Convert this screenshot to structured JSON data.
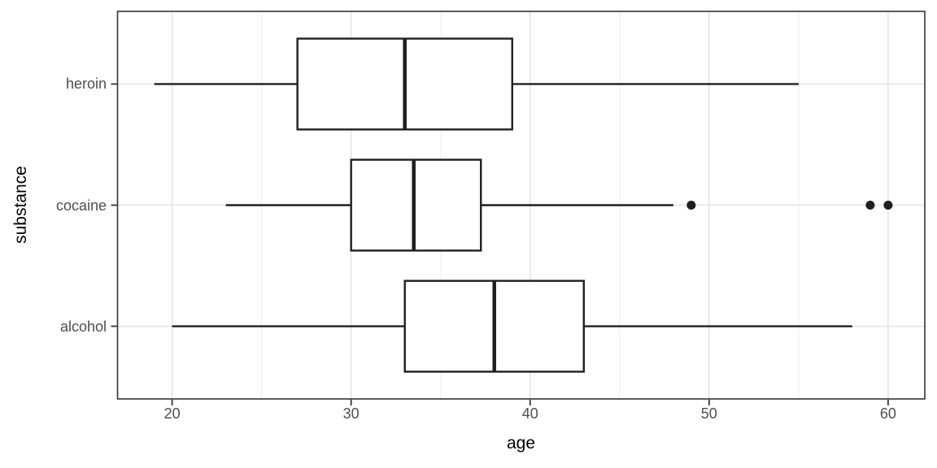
{
  "chart_data": {
    "type": "boxplot",
    "orientation": "horizontal",
    "title": "",
    "xlabel": "age",
    "ylabel": "substance",
    "xlim": [
      16.95,
      62.05
    ],
    "x_ticks": [
      20,
      30,
      40,
      50,
      60
    ],
    "x_minor_ticks": [
      25,
      35,
      45,
      55
    ],
    "grid": true,
    "legend": false,
    "categories": [
      "heroin",
      "cocaine",
      "alcohol"
    ],
    "series": [
      {
        "name": "heroin",
        "whisker_low": 19,
        "q1": 27,
        "median": 33,
        "q3": 39,
        "whisker_high": 55,
        "outliers": []
      },
      {
        "name": "cocaine",
        "whisker_low": 23,
        "q1": 30,
        "median": 33.5,
        "q3": 37.25,
        "whisker_high": 48,
        "outliers": [
          49,
          59,
          60
        ]
      },
      {
        "name": "alcohol",
        "whisker_low": 20,
        "q1": 33,
        "median": 38,
        "q3": 43,
        "whisker_high": 58,
        "outliers": []
      }
    ],
    "colors": {
      "box_stroke": "#1f1f1f",
      "box_fill": "#ffffff",
      "outlier": "#1f1f1f",
      "grid_major": "#e3e3e3",
      "grid_minor": "#f0f0f0",
      "panel_border": "#333333",
      "tick_mark": "#333333",
      "tick_label": "#4d4d4d",
      "axis_title": "#000000",
      "background": "#ffffff"
    }
  }
}
